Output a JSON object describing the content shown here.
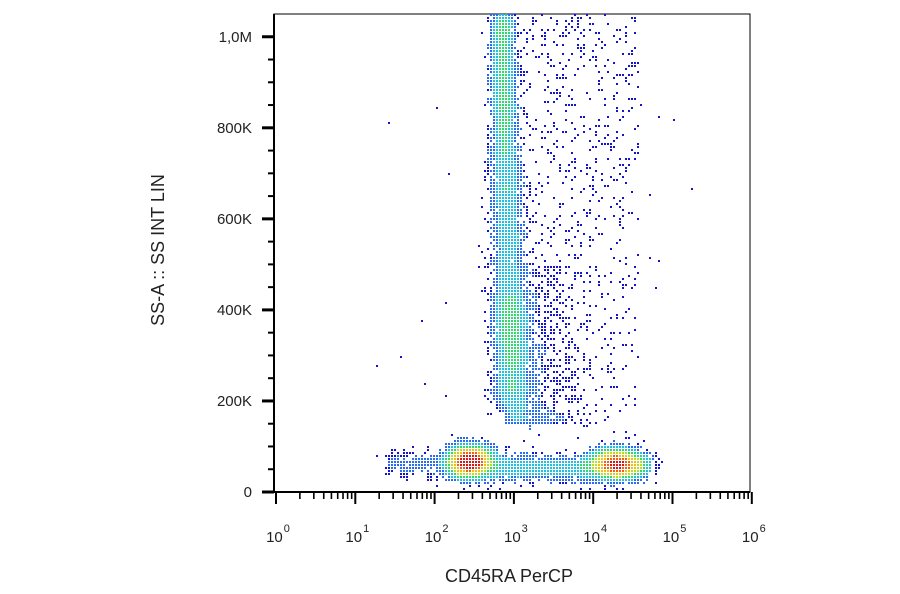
{
  "chart_data": {
    "type": "scatter",
    "subtype": "flow-cytometry-density-dot-plot",
    "xlabel": "CD45RA PerCP",
    "ylabel": "SS-A :: SS INT LIN",
    "x_scale": "log",
    "x_range": [
      1,
      1000000
    ],
    "y_scale": "linear",
    "y_range": [
      0,
      1050000
    ],
    "x_ticks": [
      {
        "base": "10",
        "exp": "0",
        "value": 1
      },
      {
        "base": "10",
        "exp": "1",
        "value": 10
      },
      {
        "base": "10",
        "exp": "2",
        "value": 100
      },
      {
        "base": "10",
        "exp": "3",
        "value": 1000
      },
      {
        "base": "10",
        "exp": "4",
        "value": 10000
      },
      {
        "base": "10",
        "exp": "5",
        "value": 100000
      },
      {
        "base": "10",
        "exp": "6",
        "value": 1000000
      }
    ],
    "y_ticks": [
      {
        "label": "0",
        "value": 0
      },
      {
        "label": "200K",
        "value": 200000
      },
      {
        "label": "400K",
        "value": 400000
      },
      {
        "label": "600K",
        "value": 600000
      },
      {
        "label": "800K",
        "value": 800000
      },
      {
        "label": "1,0M",
        "value": 1000000
      }
    ],
    "grid": false,
    "legend": "none",
    "density_colors": [
      "#1414c8",
      "#2a6cf0",
      "#20c0e0",
      "#30d870",
      "#b8e020",
      "#f0c010",
      "#f06010",
      "#d81818"
    ],
    "populations": [
      {
        "shape": "vertical-band",
        "x_center": 800,
        "y_min": 180000,
        "y_max": 1050000,
        "peak_y": 720000,
        "peak_density": "red"
      },
      {
        "shape": "cluster",
        "x_center": 300,
        "y_center": 65000,
        "peak_density": "red"
      },
      {
        "shape": "cluster",
        "x_center": 20000,
        "y_center": 65000,
        "peak_density": "red"
      },
      {
        "shape": "horizontal-band",
        "x_min": 100,
        "x_max": 50000,
        "y_center": 55000,
        "peak_density": "green"
      },
      {
        "shape": "sparse-scatter",
        "x_min": 1000,
        "x_max": 60000,
        "y_min": 100000,
        "y_max": 1050000,
        "peak_density": "blue"
      }
    ]
  }
}
